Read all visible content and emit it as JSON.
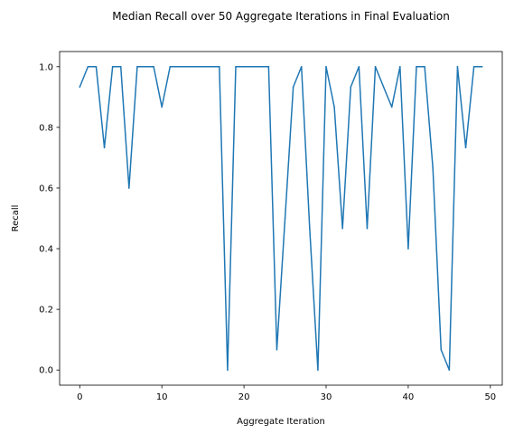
{
  "chart_data": {
    "type": "line",
    "title": "Median Recall over 50 Aggregate Iterations in Final Evaluation",
    "xlabel": "Aggregate Iteration",
    "ylabel": "Recall",
    "xlim": [
      -2.45,
      51.45
    ],
    "ylim": [
      -0.05,
      1.05
    ],
    "xticks": [
      0,
      10,
      20,
      30,
      40,
      50
    ],
    "yticks": [
      0.0,
      0.2,
      0.4,
      0.6,
      0.8,
      1.0
    ],
    "grid": false,
    "series": [
      {
        "color": "#1f77b4",
        "x": [
          0,
          1,
          2,
          3,
          4,
          5,
          6,
          7,
          8,
          9,
          10,
          11,
          12,
          13,
          14,
          15,
          16,
          17,
          18,
          19,
          20,
          21,
          22,
          23,
          24,
          25,
          26,
          27,
          28,
          29,
          30,
          31,
          32,
          33,
          34,
          35,
          36,
          37,
          38,
          39,
          40,
          41,
          42,
          43,
          44,
          45,
          46,
          47,
          48,
          49
        ],
        "y": [
          0.933,
          1.0,
          1.0,
          0.733,
          1.0,
          1.0,
          0.6,
          1.0,
          1.0,
          1.0,
          0.867,
          1.0,
          1.0,
          1.0,
          1.0,
          1.0,
          1.0,
          1.0,
          0.0,
          1.0,
          1.0,
          1.0,
          1.0,
          1.0,
          0.067,
          0.5,
          0.933,
          1.0,
          0.467,
          0.0,
          1.0,
          0.867,
          0.467,
          0.933,
          1.0,
          0.467,
          1.0,
          0.933,
          0.867,
          1.0,
          0.4,
          1.0,
          1.0,
          0.667,
          0.067,
          0.0,
          1.0,
          0.733,
          1.0,
          1.0
        ]
      }
    ]
  }
}
